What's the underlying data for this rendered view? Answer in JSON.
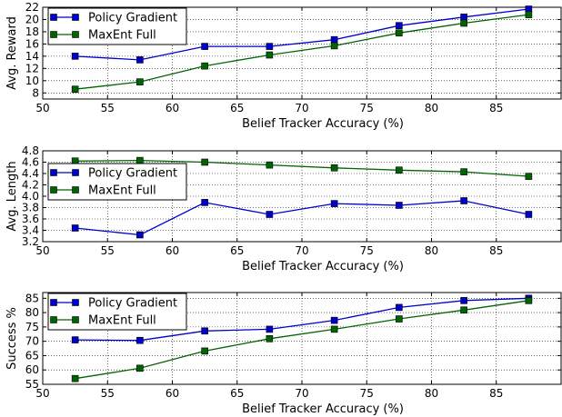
{
  "chart_data": [
    {
      "type": "line",
      "title": "",
      "xlabel": "Belief Tracker Accuracy (%)",
      "ylabel": "Avg. Reward",
      "xlim": [
        50,
        90
      ],
      "ylim": [
        7,
        22
      ],
      "xticks": [
        "50",
        "55",
        "60",
        "65",
        "70",
        "75",
        "80",
        "85"
      ],
      "yticks": [
        "8",
        "10",
        "12",
        "14",
        "16",
        "18",
        "20",
        "22"
      ],
      "grid": true,
      "legend_position": "top-left",
      "x": [
        52.5,
        57.5,
        62.5,
        67.5,
        72.5,
        77.5,
        82.5,
        87.5
      ],
      "series": [
        {
          "name": "Policy Gradient",
          "color": "#0000cc",
          "values": [
            14.0,
            13.4,
            15.6,
            15.6,
            16.7,
            19.0,
            20.4,
            21.7
          ]
        },
        {
          "name": "MaxEnt Full",
          "color": "#006400",
          "values": [
            8.6,
            9.8,
            12.4,
            14.2,
            15.7,
            17.8,
            19.4,
            20.8
          ]
        }
      ]
    },
    {
      "type": "line",
      "title": "",
      "xlabel": "Belief Tracker Accuracy (%)",
      "ylabel": "Avg. Length",
      "xlim": [
        50,
        90
      ],
      "ylim": [
        3.2,
        4.8
      ],
      "xticks": [
        "50",
        "55",
        "60",
        "65",
        "70",
        "75",
        "80",
        "85"
      ],
      "yticks": [
        "3.2",
        "3.4",
        "3.6",
        "3.8",
        "4.0",
        "4.2",
        "4.4",
        "4.6",
        "4.8"
      ],
      "grid": true,
      "legend_position": "left",
      "x": [
        52.5,
        57.5,
        62.5,
        67.5,
        72.5,
        77.5,
        82.5,
        87.5
      ],
      "series": [
        {
          "name": "Policy Gradient",
          "color": "#0000cc",
          "values": [
            3.44,
            3.32,
            3.89,
            3.68,
            3.87,
            3.84,
            3.92,
            3.68
          ]
        },
        {
          "name": "MaxEnt Full",
          "color": "#006400",
          "values": [
            4.62,
            4.63,
            4.6,
            4.55,
            4.5,
            4.46,
            4.43,
            4.35
          ]
        }
      ]
    },
    {
      "type": "line",
      "title": "",
      "xlabel": "Belief Tracker Accuracy (%)",
      "ylabel": "Success %",
      "xlim": [
        50,
        90
      ],
      "ylim": [
        55,
        87
      ],
      "xticks": [
        "50",
        "55",
        "60",
        "65",
        "70",
        "75",
        "80",
        "85"
      ],
      "yticks": [
        "55",
        "60",
        "65",
        "70",
        "75",
        "80",
        "85"
      ],
      "grid": true,
      "legend_position": "top-left",
      "x": [
        52.5,
        57.5,
        62.5,
        67.5,
        72.5,
        77.5,
        82.5,
        87.5
      ],
      "series": [
        {
          "name": "Policy Gradient",
          "color": "#0000cc",
          "values": [
            70.5,
            70.3,
            73.6,
            74.2,
            77.3,
            81.8,
            84.2,
            85.0
          ]
        },
        {
          "name": "MaxEnt Full",
          "color": "#006400",
          "values": [
            57.0,
            60.6,
            66.6,
            70.9,
            74.2,
            77.8,
            80.9,
            84.2
          ]
        }
      ]
    }
  ]
}
